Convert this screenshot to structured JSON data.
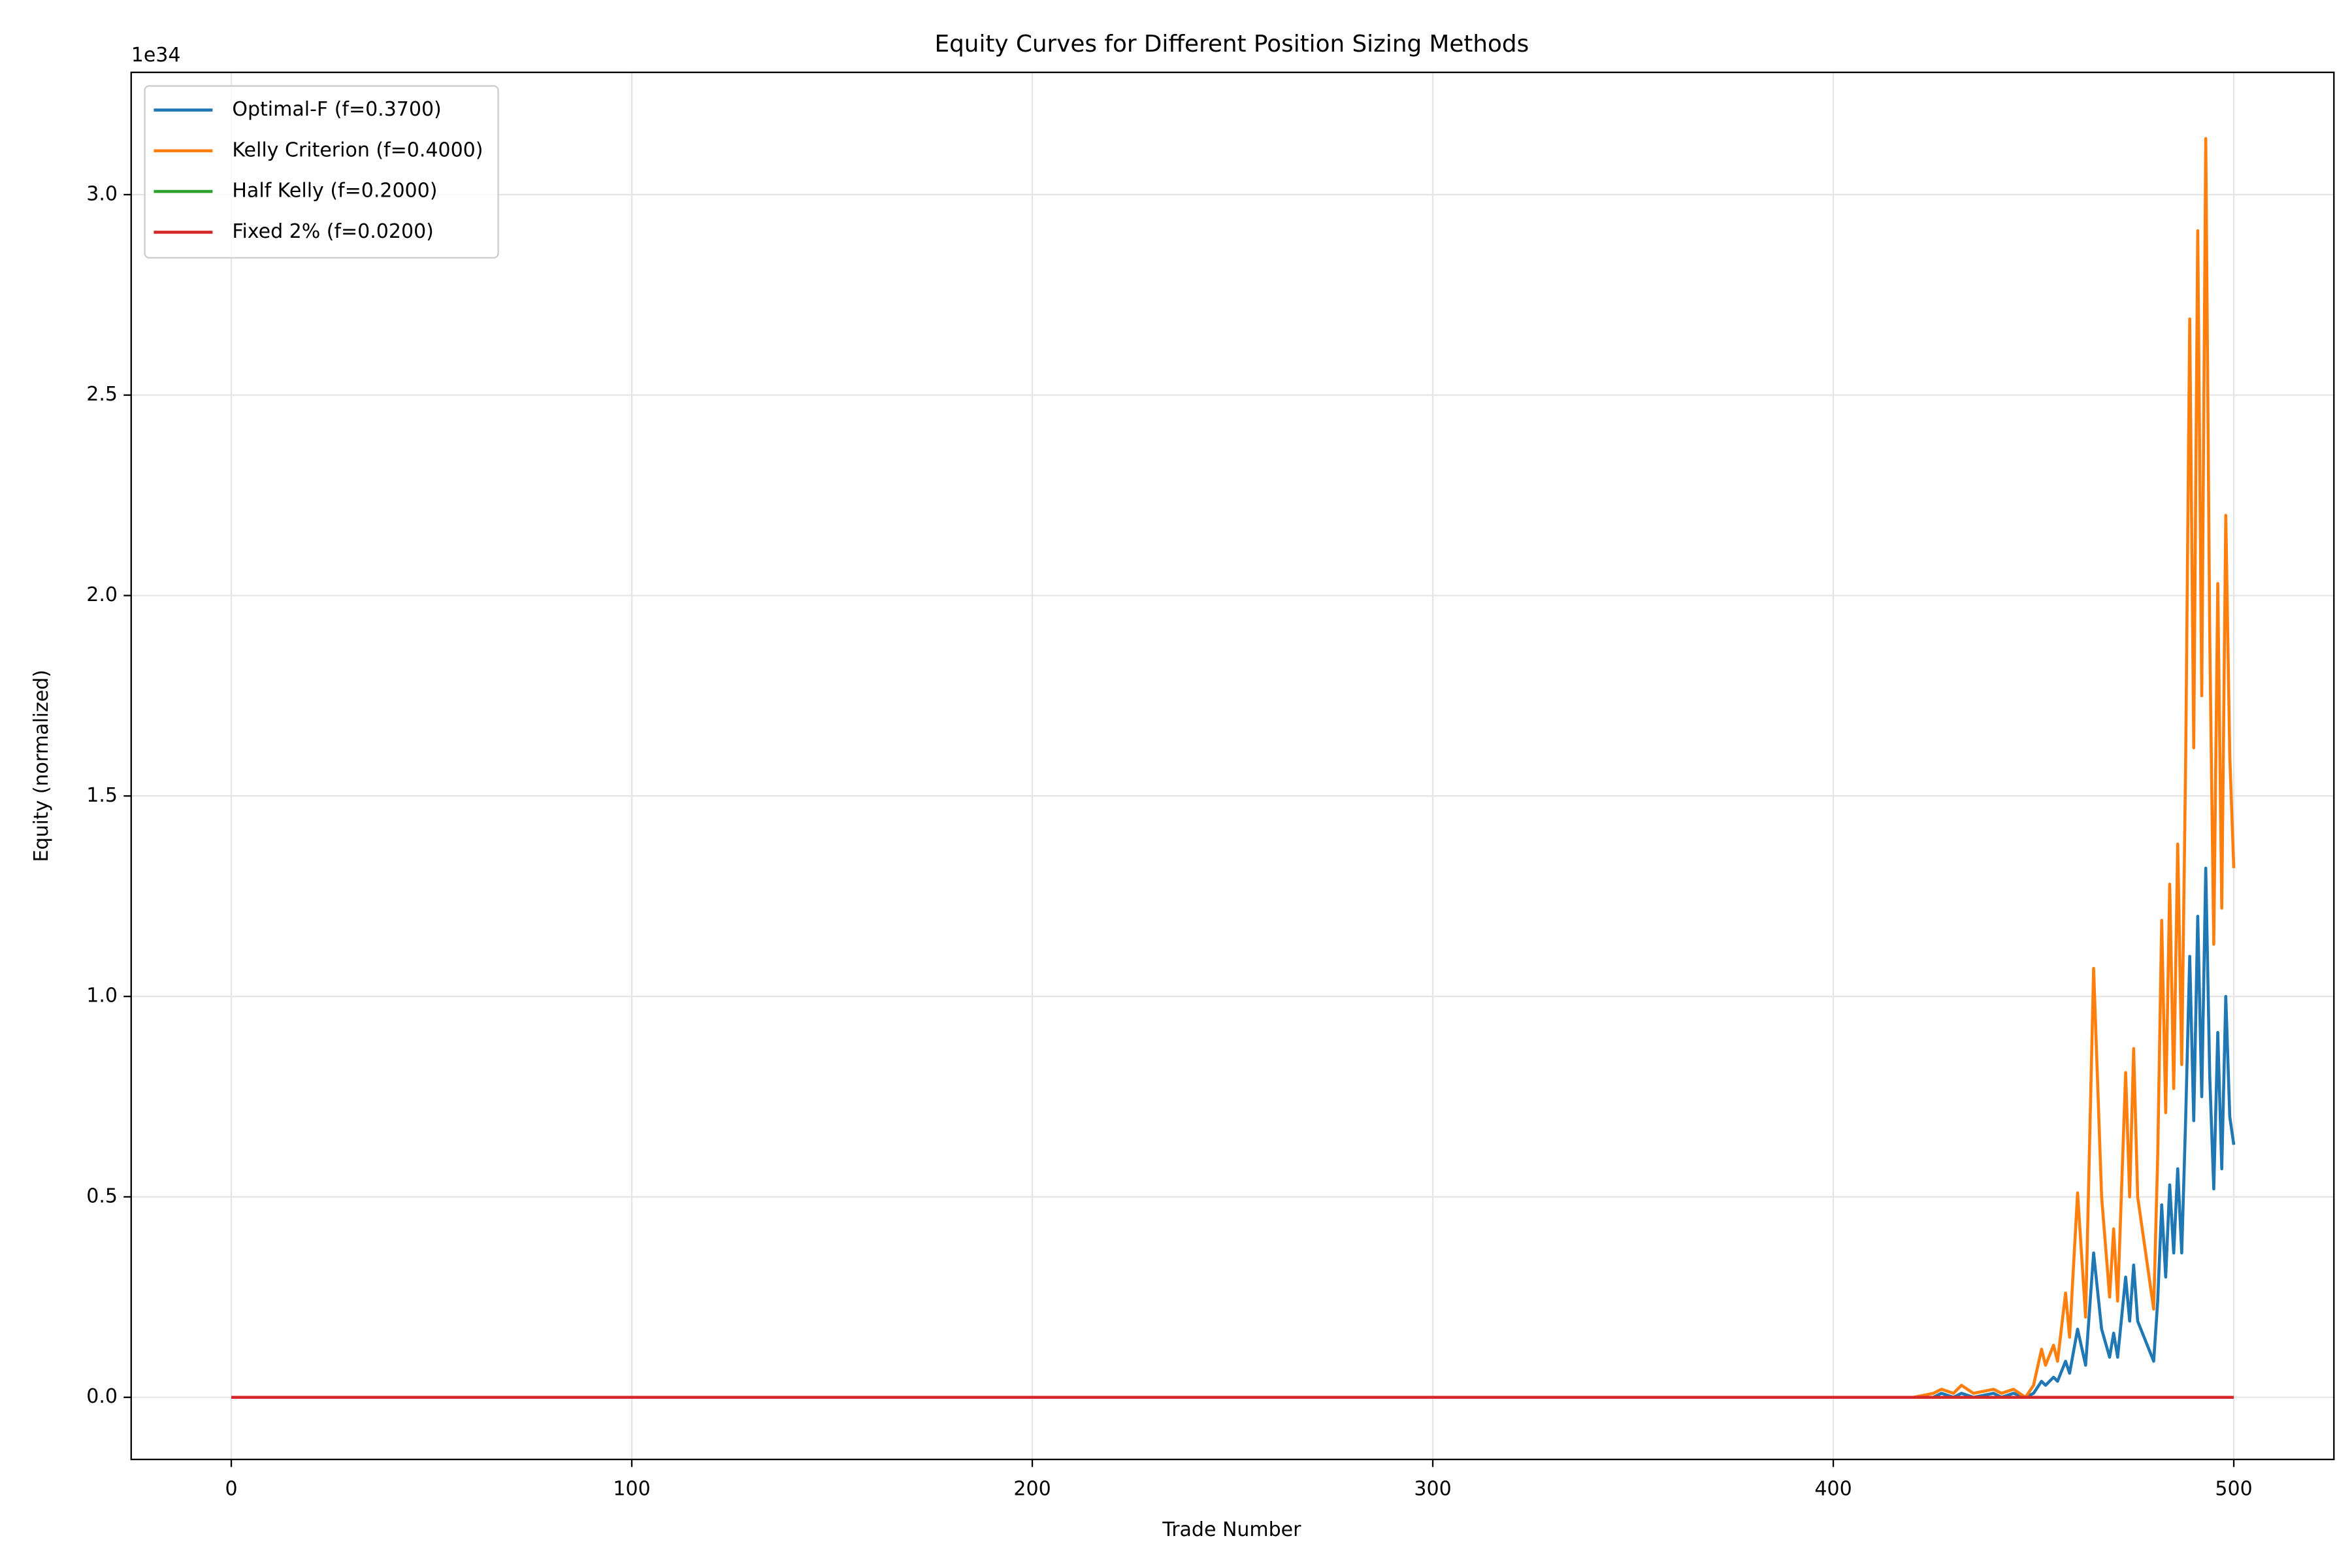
{
  "chart_data": {
    "type": "line",
    "title": "Equity Curves for Different Position Sizing Methods",
    "xlabel": "Trade Number",
    "ylabel": "Equity (normalized)",
    "offset_label": "1e34",
    "x": [
      0,
      100,
      200,
      300,
      400,
      420,
      425,
      427,
      430,
      432,
      435,
      440,
      442,
      445,
      448,
      450,
      452,
      453,
      455,
      456,
      458,
      459,
      461,
      463,
      465,
      467,
      469,
      470,
      471,
      473,
      474,
      475,
      476,
      478,
      480,
      481,
      482,
      483,
      484,
      485,
      486,
      487,
      488,
      489,
      490,
      491,
      492,
      493,
      494,
      495,
      496,
      497,
      498,
      499,
      500
    ],
    "series": [
      {
        "name": "Optimal-F (f=0.3700)",
        "color": "#1f77b4",
        "values": [
          0,
          0,
          0,
          0,
          0,
          0,
          0,
          0.01,
          0,
          0.01,
          0,
          0.01,
          0,
          0.01,
          0,
          0.01,
          0.04,
          0.03,
          0.05,
          0.04,
          0.09,
          0.06,
          0.17,
          0.08,
          0.36,
          0.17,
          0.1,
          0.16,
          0.1,
          0.3,
          0.19,
          0.33,
          0.19,
          0.14,
          0.09,
          0.24,
          0.48,
          0.3,
          0.53,
          0.36,
          0.57,
          0.36,
          0.7,
          1.1,
          0.69,
          1.2,
          0.75,
          1.32,
          0.8,
          0.52,
          0.91,
          0.57,
          1.0,
          0.7,
          0.63
        ]
      },
      {
        "name": "Kelly Criterion (f=0.4000)",
        "color": "#ff7f0e",
        "values": [
          0,
          0,
          0,
          0,
          0,
          0,
          0.01,
          0.02,
          0.01,
          0.03,
          0.01,
          0.02,
          0.01,
          0.02,
          0,
          0.03,
          0.12,
          0.08,
          0.13,
          0.09,
          0.26,
          0.15,
          0.51,
          0.2,
          1.07,
          0.5,
          0.25,
          0.42,
          0.24,
          0.81,
          0.5,
          0.87,
          0.5,
          0.36,
          0.22,
          0.6,
          1.19,
          0.71,
          1.28,
          0.77,
          1.38,
          0.83,
          1.6,
          2.69,
          1.62,
          2.91,
          1.75,
          3.14,
          1.9,
          1.13,
          2.03,
          1.22,
          2.2,
          1.6,
          1.32
        ]
      },
      {
        "name": "Half Kelly (f=0.2000)",
        "color": "#2ca02c",
        "values": [
          0,
          0,
          0,
          0,
          0,
          0,
          0,
          0,
          0,
          0,
          0,
          0,
          0,
          0,
          0,
          0,
          0,
          0,
          0,
          0,
          0,
          0,
          0,
          0,
          0,
          0,
          0,
          0,
          0,
          0,
          0,
          0,
          0,
          0,
          0,
          0,
          0,
          0,
          0,
          0,
          0,
          0,
          0,
          0,
          0,
          0,
          0,
          0,
          0,
          0,
          0,
          0,
          0,
          0,
          0
        ]
      },
      {
        "name": "Fixed 2% (f=0.0200)",
        "color": "#d62728",
        "values": [
          0,
          0,
          0,
          0,
          0,
          0,
          0,
          0,
          0,
          0,
          0,
          0,
          0,
          0,
          0,
          0,
          0,
          0,
          0,
          0,
          0,
          0,
          0,
          0,
          0,
          0,
          0,
          0,
          0,
          0,
          0,
          0,
          0,
          0,
          0,
          0,
          0,
          0,
          0,
          0,
          0,
          0,
          0,
          0,
          0,
          0,
          0,
          0,
          0,
          0,
          0,
          0,
          0,
          0,
          0
        ]
      }
    ],
    "xlim": [
      -25,
      525
    ],
    "xticks": [
      0,
      100,
      200,
      300,
      400,
      500
    ],
    "ylim": [
      -0.155,
      3.305
    ],
    "yticks": [
      {
        "value": 0,
        "label": "0.0"
      },
      {
        "value": 0.5,
        "label": "0.5"
      },
      {
        "value": 1,
        "label": "1.0"
      },
      {
        "value": 1.5,
        "label": "1.5"
      },
      {
        "value": 2,
        "label": "2.0"
      },
      {
        "value": 2.5,
        "label": "2.5"
      },
      {
        "value": 3,
        "label": "3.0"
      }
    ],
    "grid": true,
    "legend": "upper left"
  }
}
